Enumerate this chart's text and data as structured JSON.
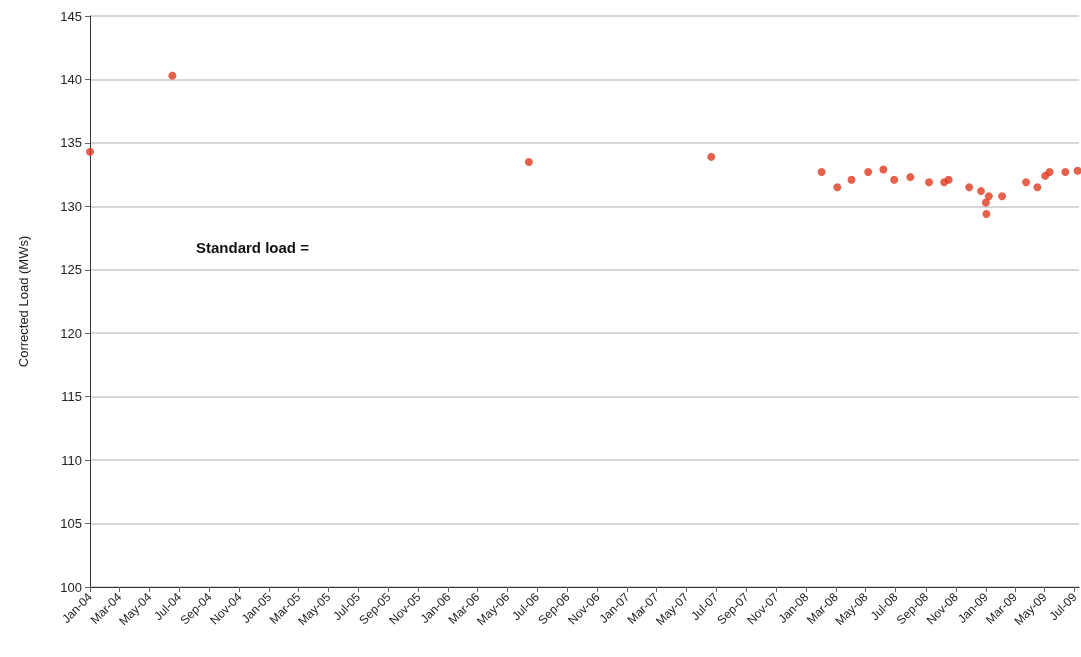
{
  "chart_data": {
    "type": "scatter",
    "ylabel": "Corrected Load (MWs)",
    "annotations": [
      "Standard load ="
    ],
    "x": [
      "2004-01-01",
      "2004-06-17",
      "2006-06-14",
      "2007-06-21",
      "2008-02-01",
      "2008-03-04",
      "2008-04-02",
      "2008-05-06",
      "2008-06-06",
      "2008-06-28",
      "2008-07-31",
      "2008-09-07",
      "2008-10-08",
      "2008-10-17",
      "2008-11-28",
      "2008-12-22",
      "2009-01-07",
      "2009-01-01",
      "2009-01-02",
      "2009-02-03",
      "2009-03-24",
      "2009-04-16",
      "2009-05-02",
      "2009-05-11",
      "2009-06-12",
      "2009-07-07"
    ],
    "series": [
      {
        "color": "#e03a1e",
        "values": [
          134.3,
          140.3,
          133.5,
          133.9,
          132.7,
          131.5,
          132.1,
          132.7,
          132.9,
          132.1,
          132.3,
          131.9,
          131.9,
          132.1,
          131.5,
          131.2,
          130.8,
          130.3,
          129.4,
          130.8,
          131.9,
          131.5,
          132.4,
          132.7,
          132.7,
          132.8
        ]
      }
    ],
    "xlim": [
      "2004-01-01",
      "2009-07-10"
    ],
    "xticks": [
      {
        "value": "2004-01-01",
        "label": "Jan-04"
      },
      {
        "value": "2004-03-01",
        "label": "Mar-04"
      },
      {
        "value": "2004-05-01",
        "label": "May-04"
      },
      {
        "value": "2004-07-01",
        "label": "Jul-04"
      },
      {
        "value": "2004-09-01",
        "label": "Sep-04"
      },
      {
        "value": "2004-11-01",
        "label": "Nov-04"
      },
      {
        "value": "2005-01-01",
        "label": "Jan-05"
      },
      {
        "value": "2005-03-01",
        "label": "Mar-05"
      },
      {
        "value": "2005-05-01",
        "label": "May-05"
      },
      {
        "value": "2005-07-01",
        "label": "Jul-05"
      },
      {
        "value": "2005-09-01",
        "label": "Sep-05"
      },
      {
        "value": "2005-11-01",
        "label": "Nov-05"
      },
      {
        "value": "2006-01-01",
        "label": "Jan-06"
      },
      {
        "value": "2006-03-01",
        "label": "Mar-06"
      },
      {
        "value": "2006-05-01",
        "label": "May-06"
      },
      {
        "value": "2006-07-01",
        "label": "Jul-06"
      },
      {
        "value": "2006-09-01",
        "label": "Sep-06"
      },
      {
        "value": "2006-11-01",
        "label": "Nov-06"
      },
      {
        "value": "2007-01-01",
        "label": "Jan-07"
      },
      {
        "value": "2007-03-01",
        "label": "Mar-07"
      },
      {
        "value": "2007-05-01",
        "label": "May-07"
      },
      {
        "value": "2007-07-01",
        "label": "Jul-07"
      },
      {
        "value": "2007-09-01",
        "label": "Sep-07"
      },
      {
        "value": "2007-11-01",
        "label": "Nov-07"
      },
      {
        "value": "2008-01-01",
        "label": "Jan-08"
      },
      {
        "value": "2008-03-01",
        "label": "Mar-08"
      },
      {
        "value": "2008-05-01",
        "label": "May-08"
      },
      {
        "value": "2008-07-01",
        "label": "Jul-08"
      },
      {
        "value": "2008-09-01",
        "label": "Sep-08"
      },
      {
        "value": "2008-11-01",
        "label": "Nov-08"
      },
      {
        "value": "2009-01-01",
        "label": "Jan-09"
      },
      {
        "value": "2009-03-01",
        "label": "Mar-09"
      },
      {
        "value": "2009-05-01",
        "label": "May-09"
      },
      {
        "value": "2009-07-01",
        "label": "Jul-09"
      }
    ],
    "ylim": [
      100,
      145
    ],
    "yticks": [
      100,
      105,
      110,
      115,
      120,
      125,
      130,
      135,
      140,
      145
    ],
    "grid": "y",
    "marker": "circle"
  }
}
